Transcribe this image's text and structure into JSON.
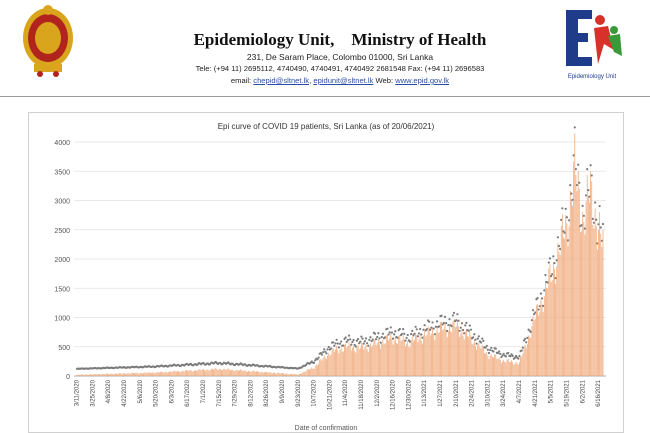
{
  "header": {
    "org_name": "Epidemiology Unit,",
    "ministry": "Ministry of Health",
    "address": "231, De Saram Place, Colombo 01000, Sri Lanka",
    "tel": "Tele: (+94 11) 2695112, 4740490, 4740491, 4740492 2681548 Fax: (+94 11) 2696583",
    "email_label": "email: ",
    "email1": "chepid@sltnet.lk",
    "email2": "epidunit@sltnet.lk",
    "web_label": " Web: ",
    "web": "www.epid.gov.lk",
    "logo_caption": "Epidemiology Unit",
    "colors": {
      "emblem_gold": "#d9a51c",
      "emblem_red": "#b0241d",
      "logo_blue": "#1f3c8a",
      "logo_red": "#d8312a",
      "logo_green": "#3a9a3a"
    }
  },
  "chart_data": {
    "type": "bar",
    "title": "Epi curve of COVID 19 patients, Sri Lanka  (as of 20/06/2021)",
    "xlabel": "Date of confirmation",
    "ylabel": "",
    "ylim": [
      0,
      4000
    ],
    "yticks": [
      "0",
      "500",
      "1000",
      "1500",
      "2000",
      "2500",
      "3000",
      "3500",
      "4000"
    ],
    "xtick_labels": [
      "3/11/2020",
      "3/25/2020",
      "4/8/2020",
      "4/22/2020",
      "5/6/2020",
      "5/20/2020",
      "6/3/2020",
      "6/17/2020",
      "7/1/2020",
      "7/15/2020",
      "7/29/2020",
      "8/12/2020",
      "8/26/2020",
      "9/9/2020",
      "9/23/2020",
      "10/7/2020",
      "10/21/2020",
      "11/4/2020",
      "11/18/2020",
      "12/2/2020",
      "12/16/2020",
      "12/30/2020",
      "1/13/2021",
      "1/27/2021",
      "2/10/2021",
      "2/24/2021",
      "3/10/2021",
      "3/24/2021",
      "4/7/2021",
      "4/21/2021",
      "5/5/2021",
      "5/19/2021",
      "6/2/2021",
      "6/16/2021"
    ],
    "x_anchors": [
      {
        "label": "3/11/2020",
        "value": 20
      },
      {
        "label": "5/20/2020",
        "value": 60
      },
      {
        "label": "7/15/2020",
        "value": 120
      },
      {
        "label": "9/23/2020",
        "value": 25
      },
      {
        "label": "10/7/2020",
        "value": 150
      },
      {
        "label": "10/21/2020",
        "value": 400
      },
      {
        "label": "11/4/2020",
        "value": 500
      },
      {
        "label": "11/18/2020",
        "value": 480
      },
      {
        "label": "12/2/2020",
        "value": 560
      },
      {
        "label": "12/16/2020",
        "value": 650
      },
      {
        "label": "12/30/2020",
        "value": 570
      },
      {
        "label": "1/13/2021",
        "value": 700
      },
      {
        "label": "1/27/2021",
        "value": 800
      },
      {
        "label": "2/10/2021",
        "value": 850
      },
      {
        "label": "2/24/2021",
        "value": 620
      },
      {
        "label": "3/10/2021",
        "value": 370
      },
      {
        "label": "3/24/2021",
        "value": 260
      },
      {
        "label": "4/7/2021",
        "value": 220
      },
      {
        "label": "4/21/2021",
        "value": 1000
      },
      {
        "label": "5/5/2021",
        "value": 1700
      },
      {
        "label": "5/19/2021",
        "value": 2600
      },
      {
        "label": "5/26/2021",
        "value": 3500
      },
      {
        "label": "6/2/2021",
        "value": 2700
      },
      {
        "label": "6/9/2021",
        "value": 3100
      },
      {
        "label": "6/20/2021",
        "value": 2200
      }
    ],
    "series_colors": {
      "bars": "#f0a97a",
      "markers": "#7a7a7a",
      "grid": "#e2e2e2"
    },
    "grid": true,
    "legend": "none"
  }
}
